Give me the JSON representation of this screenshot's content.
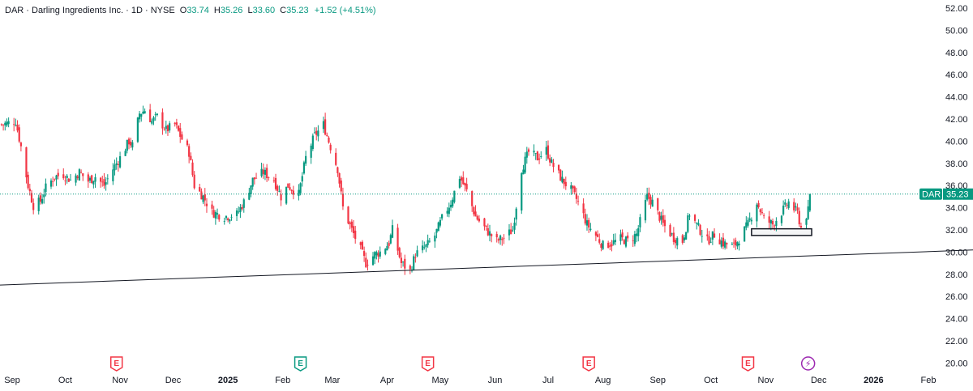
{
  "header": {
    "title": "DAR · Darling Ingredients Inc. · 1D · NYSE",
    "open_label": "O",
    "open": "33.74",
    "high_label": "H",
    "high": "35.26",
    "low_label": "L",
    "low": "33.60",
    "close_label": "C",
    "close": "35.23",
    "change": "+1.52 (+4.51%)"
  },
  "price_tag": {
    "symbol": "DAR",
    "price": "35.23"
  },
  "colors": {
    "up": "#089981",
    "down": "#f23645",
    "trendline": "#131722",
    "dotted": "#089981",
    "earnings": "#f23645",
    "earnings_green": "#089981",
    "dividend": "#9c27b0"
  },
  "chart_data": {
    "type": "candlestick",
    "title": "DAR · Darling Ingredients Inc. · 1D · NYSE",
    "y_ticks": [
      "52.00",
      "50.00",
      "48.00",
      "46.00",
      "44.00",
      "42.00",
      "40.00",
      "38.00",
      "36.00",
      "34.00",
      "32.00",
      "30.00",
      "28.00",
      "26.00",
      "24.00",
      "22.00",
      "20.00"
    ],
    "ylim": [
      20,
      52
    ],
    "x_ticks": [
      {
        "label": "Sep",
        "month": "2024-09"
      },
      {
        "label": "Oct",
        "month": "2024-10"
      },
      {
        "label": "Nov",
        "month": "2024-11"
      },
      {
        "label": "Dec",
        "month": "2024-12"
      },
      {
        "label": "2025",
        "month": "2025-01",
        "bold": true
      },
      {
        "label": "Feb",
        "month": "2025-02"
      },
      {
        "label": "Mar",
        "month": "2025-03"
      },
      {
        "label": "Apr",
        "month": "2025-04"
      },
      {
        "label": "May",
        "month": "2025-05"
      },
      {
        "label": "Jun",
        "month": "2025-06"
      },
      {
        "label": "Jul",
        "month": "2025-07"
      },
      {
        "label": "Aug",
        "month": "2025-08"
      },
      {
        "label": "Sep",
        "month": "2025-09"
      },
      {
        "label": "Oct",
        "month": "2025-10"
      },
      {
        "label": "Nov",
        "month": "2025-11"
      },
      {
        "label": "Dec",
        "month": "2025-12"
      },
      {
        "label": "2026",
        "month": "2026-01",
        "bold": true
      },
      {
        "label": "Feb",
        "month": "2026-02"
      }
    ],
    "close_path": [
      [
        "2024-08-26",
        41.5
      ],
      [
        "2024-09-03",
        41.8
      ],
      [
        "2024-09-06",
        39.5
      ],
      [
        "2024-09-10",
        36.0
      ],
      [
        "2024-09-13",
        34.2
      ],
      [
        "2024-09-17",
        34.6
      ],
      [
        "2024-09-20",
        35.8
      ],
      [
        "2024-09-25",
        36.8
      ],
      [
        "2024-09-30",
        37.0
      ],
      [
        "2024-10-04",
        36.5
      ],
      [
        "2024-10-09",
        37.2
      ],
      [
        "2024-10-14",
        36.4
      ],
      [
        "2024-10-18",
        36.8
      ],
      [
        "2024-10-23",
        36.0
      ],
      [
        "2024-10-28",
        37.5
      ],
      [
        "2024-11-01",
        38.5
      ],
      [
        "2024-11-06",
        40.0
      ],
      [
        "2024-11-08",
        39.6
      ],
      [
        "2024-11-12",
        42.5
      ],
      [
        "2024-11-15",
        42.8
      ],
      [
        "2024-11-19",
        41.8
      ],
      [
        "2024-11-22",
        42.2
      ],
      [
        "2024-11-27",
        41.0
      ],
      [
        "2024-12-02",
        41.5
      ],
      [
        "2024-12-05",
        40.5
      ],
      [
        "2024-12-10",
        39.0
      ],
      [
        "2024-12-13",
        36.0
      ],
      [
        "2024-12-18",
        35.0
      ],
      [
        "2024-12-23",
        33.6
      ],
      [
        "2024-12-30",
        33.2
      ],
      [
        "2025-01-06",
        33.4
      ],
      [
        "2025-01-10",
        34.5
      ],
      [
        "2025-01-15",
        36.5
      ],
      [
        "2025-01-21",
        37.2
      ],
      [
        "2025-01-27",
        36.5
      ],
      [
        "2025-01-31",
        35.0
      ],
      [
        "2025-02-04",
        36.0
      ],
      [
        "2025-02-10",
        35.2
      ],
      [
        "2025-02-14",
        38.5
      ],
      [
        "2025-02-19",
        40.5
      ],
      [
        "2025-02-24",
        41.5
      ],
      [
        "2025-02-28",
        39.5
      ],
      [
        "2025-03-04",
        37.5
      ],
      [
        "2025-03-07",
        34.0
      ],
      [
        "2025-03-12",
        32.0
      ],
      [
        "2025-03-17",
        30.2
      ],
      [
        "2025-03-20",
        29.0
      ],
      [
        "2025-03-25",
        29.8
      ],
      [
        "2025-03-28",
        30.0
      ],
      [
        "2025-04-02",
        30.8
      ],
      [
        "2025-04-04",
        32.0
      ],
      [
        "2025-04-09",
        29.0
      ],
      [
        "2025-04-14",
        28.3
      ],
      [
        "2025-04-17",
        29.8
      ],
      [
        "2025-04-23",
        30.5
      ],
      [
        "2025-04-28",
        31.5
      ],
      [
        "2025-05-02",
        33.0
      ],
      [
        "2025-05-07",
        34.5
      ],
      [
        "2025-05-12",
        36.8
      ],
      [
        "2025-05-16",
        35.5
      ],
      [
        "2025-05-21",
        33.2
      ],
      [
        "2025-05-27",
        32.0
      ],
      [
        "2025-06-02",
        31.0
      ],
      [
        "2025-06-06",
        31.3
      ],
      [
        "2025-06-11",
        32.0
      ],
      [
        "2025-06-16",
        37.5
      ],
      [
        "2025-06-20",
        39.0
      ],
      [
        "2025-06-25",
        38.5
      ],
      [
        "2025-06-30",
        39.2
      ],
      [
        "2025-07-03",
        38.0
      ],
      [
        "2025-07-09",
        36.5
      ],
      [
        "2025-07-14",
        35.6
      ],
      [
        "2025-07-18",
        34.5
      ],
      [
        "2025-07-23",
        32.5
      ],
      [
        "2025-07-28",
        31.5
      ],
      [
        "2025-08-01",
        30.6
      ],
      [
        "2025-08-06",
        30.8
      ],
      [
        "2025-08-11",
        31.2
      ],
      [
        "2025-08-15",
        31.0
      ],
      [
        "2025-08-20",
        31.6
      ],
      [
        "2025-08-26",
        35.0
      ],
      [
        "2025-08-29",
        34.5
      ],
      [
        "2025-09-04",
        32.5
      ],
      [
        "2025-09-10",
        31.3
      ],
      [
        "2025-09-15",
        31.0
      ],
      [
        "2025-09-19",
        33.5
      ],
      [
        "2025-09-24",
        32.2
      ],
      [
        "2025-09-29",
        31.0
      ],
      [
        "2025-10-03",
        31.6
      ],
      [
        "2025-10-08",
        30.8
      ],
      [
        "2025-10-14",
        30.5
      ],
      [
        "2025-10-17",
        31.2
      ],
      [
        "2025-10-22",
        32.5
      ],
      [
        "2025-10-27",
        34.5
      ],
      [
        "2025-10-31",
        33.0
      ],
      [
        "2025-11-05",
        32.5
      ],
      [
        "2025-11-10",
        33.6
      ],
      [
        "2025-11-14",
        34.5
      ],
      [
        "2025-11-19",
        33.5
      ],
      [
        "2025-11-21",
        32.2
      ],
      [
        "2025-11-25",
        33.7
      ],
      [
        "2025-11-26",
        35.23
      ]
    ],
    "trendline": {
      "start": [
        "2024-08-20",
        27.0
      ],
      "end": [
        "2026-02-28",
        30.2
      ]
    },
    "last_price": 35.23,
    "box": {
      "start": "2025-10-24",
      "end": "2025-11-27",
      "low": 31.5,
      "high": 32.1
    },
    "event_markers": [
      {
        "date": "2024-10-30",
        "label": "E",
        "kind": "earnings-red"
      },
      {
        "date": "2025-02-11",
        "label": "E",
        "kind": "earnings-green"
      },
      {
        "date": "2025-04-24",
        "label": "E",
        "kind": "earnings-red"
      },
      {
        "date": "2025-07-24",
        "label": "E",
        "kind": "earnings-red"
      },
      {
        "date": "2025-10-22",
        "label": "E",
        "kind": "earnings-red"
      },
      {
        "date": "2025-11-25",
        "label": "⚡",
        "kind": "dividend"
      }
    ]
  }
}
